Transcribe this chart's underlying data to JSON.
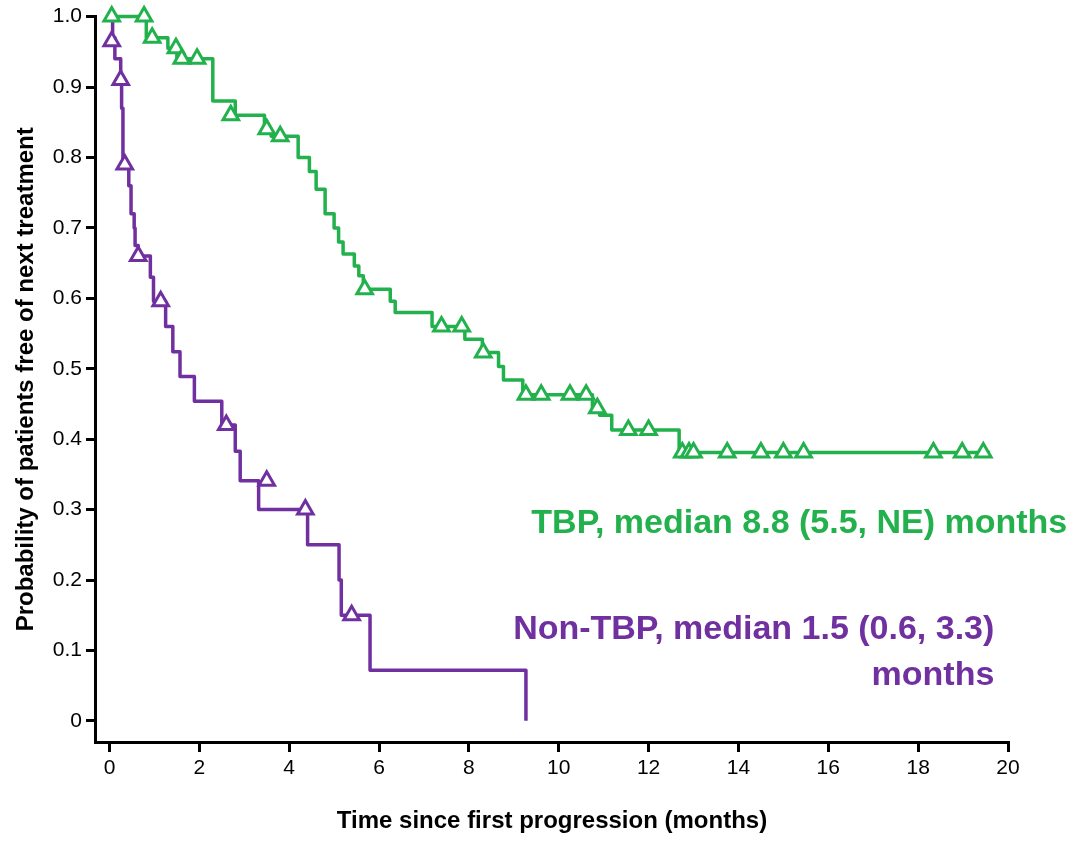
{
  "chart_data": {
    "type": "step",
    "xlabel": "Time since first progression (months)",
    "ylabel": "Probability of patients free of next treatment",
    "xlim": [
      -0.3,
      20
    ],
    "xticks": [
      0,
      2,
      4,
      6,
      8,
      10,
      12,
      14,
      16,
      18,
      20
    ],
    "ylim": [
      -0.03,
      1.0
    ],
    "yticks": [
      0,
      0.1,
      0.2,
      0.3,
      0.4,
      0.5,
      0.6,
      0.7,
      0.8,
      0.9,
      {
        "value": 1,
        "label": "1.0"
      }
    ],
    "grid": false,
    "legend": false,
    "series": [
      {
        "name": "TBP, median 8.8 (5.5, NE) months",
        "color": "#22b14c",
        "marker": "none",
        "x": [
          0,
          0.82,
          1.3,
          1.5,
          2.3,
          2.8,
          3.45,
          3.6,
          4.2,
          4.45,
          4.6,
          4.8,
          5.0,
          5.1,
          5.2,
          5.45,
          5.55,
          5.65,
          6.25,
          6.36,
          7.18,
          7.91,
          8.3,
          8.66,
          8.77,
          9.2,
          10.75,
          10.91,
          11.18,
          12.68,
          19.6
        ],
        "values": [
          1.0,
          0.97,
          0.955,
          0.94,
          0.88,
          0.86,
          0.84,
          0.83,
          0.8,
          0.78,
          0.755,
          0.72,
          0.7,
          0.68,
          0.663,
          0.646,
          0.632,
          0.613,
          0.596,
          0.58,
          0.56,
          0.542,
          0.523,
          0.503,
          0.484,
          0.463,
          0.444,
          0.434,
          0.413,
          0.381,
          0.381
        ]
      },
      {
        "name": "Non-TBP, median 1.5 (0.6, 3.3) months",
        "color": "#7030a0",
        "marker": "none",
        "x": [
          0,
          0.07,
          0.12,
          0.25,
          0.27,
          0.3,
          0.43,
          0.48,
          0.55,
          0.57,
          0.64,
          0.91,
          0.98,
          1.25,
          1.41,
          1.57,
          1.89,
          2.5,
          2.8,
          2.91,
          3.32,
          4.41,
          5.11,
          5.16,
          5.8,
          9.27
        ],
        "values": [
          1.0,
          0.97,
          0.94,
          0.91,
          0.87,
          0.79,
          0.76,
          0.72,
          0.7,
          0.675,
          0.66,
          0.63,
          0.596,
          0.56,
          0.524,
          0.489,
          0.454,
          0.42,
          0.383,
          0.341,
          0.3,
          0.25,
          0.2,
          0.15,
          0.072,
          0
        ]
      },
      {
        "type": "scatter",
        "color": "#22b14c",
        "marker": "triangle",
        "x": [
          0.05,
          0.77,
          0.95,
          1.48,
          1.61,
          1.95,
          2.7,
          3.5,
          3.8,
          5.68,
          7.39,
          7.84,
          8.32,
          9.27,
          9.61,
          10.25,
          10.61,
          10.86,
          11.55,
          12.0,
          12.75,
          12.9,
          13.0,
          13.75,
          14.5,
          15.0,
          15.45,
          18.34,
          18.98,
          19.45
        ],
        "values": [
          1.0,
          1.0,
          0.97,
          0.955,
          0.94,
          0.94,
          0.86,
          0.84,
          0.83,
          0.613,
          0.56,
          0.56,
          0.523,
          0.463,
          0.463,
          0.463,
          0.463,
          0.444,
          0.413,
          0.413,
          0.381,
          0.381,
          0.381,
          0.381,
          0.381,
          0.381,
          0.381,
          0.381,
          0.381,
          0.381
        ]
      },
      {
        "type": "scatter",
        "color": "#7030a0",
        "marker": "triangle",
        "x": [
          0.05,
          0.25,
          0.34,
          0.64,
          1.14,
          2.6,
          3.5,
          4.36,
          5.39
        ],
        "values": [
          0.965,
          0.91,
          0.79,
          0.66,
          0.596,
          0.42,
          0.341,
          0.3,
          0.15
        ]
      }
    ]
  }
}
